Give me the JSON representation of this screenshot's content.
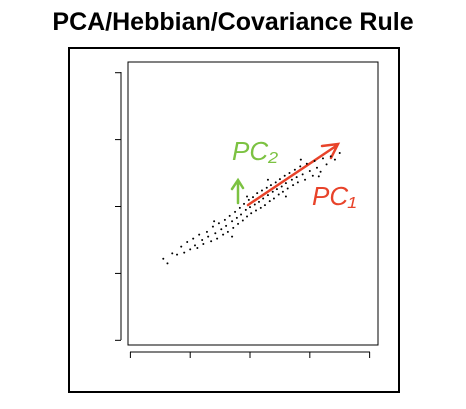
{
  "chart_data": {
    "type": "scatter",
    "title": "PCA/Hebbian/Covariance Rule",
    "annotations": [
      "PC₂",
      "PC₁"
    ],
    "annotation_colors": [
      "#7cc242",
      "#e8432a"
    ],
    "color": "#000000",
    "xlim": [
      -0.04,
      4.14
    ],
    "ylim": [
      -0.07,
      4.16
    ],
    "xticks": [
      0,
      1,
      2,
      3,
      4
    ],
    "yticks": [
      0,
      1,
      2,
      3,
      4
    ],
    "x": [
      0.55,
      0.62,
      0.7,
      0.78,
      0.85,
      0.9,
      0.95,
      1.0,
      1.05,
      1.08,
      1.12,
      1.15,
      1.2,
      1.22,
      1.28,
      1.3,
      1.35,
      1.38,
      1.42,
      1.45,
      1.48,
      1.52,
      1.55,
      1.58,
      1.6,
      1.63,
      1.66,
      1.7,
      1.72,
      1.75,
      1.78,
      1.8,
      1.83,
      1.85,
      1.88,
      1.9,
      1.93,
      1.95,
      1.98,
      2.0,
      2.02,
      2.05,
      2.08,
      2.1,
      2.12,
      2.15,
      2.18,
      2.2,
      2.22,
      2.25,
      2.28,
      2.3,
      2.33,
      2.35,
      2.38,
      2.4,
      2.43,
      2.45,
      2.48,
      2.5,
      2.53,
      2.55,
      2.58,
      2.6,
      2.63,
      2.66,
      2.7,
      2.72,
      2.75,
      2.78,
      2.8,
      2.84,
      2.88,
      2.92,
      2.95,
      3.0,
      3.05,
      3.08,
      3.12,
      3.18,
      3.22,
      3.28,
      3.35,
      3.42,
      3.5,
      2.3,
      1.7,
      2.6,
      1.95,
      2.85,
      1.4,
      3.15
    ],
    "values": [
      1.22,
      1.15,
      1.3,
      1.28,
      1.4,
      1.31,
      1.47,
      1.36,
      1.52,
      1.42,
      1.38,
      1.58,
      1.5,
      1.44,
      1.62,
      1.55,
      1.48,
      1.7,
      1.6,
      1.52,
      1.75,
      1.66,
      1.58,
      1.8,
      1.71,
      1.62,
      1.86,
      1.78,
      1.68,
      1.92,
      1.83,
      1.74,
      1.98,
      1.88,
      1.79,
      2.04,
      1.95,
      1.85,
      2.1,
      1.99,
      1.9,
      2.14,
      2.03,
      1.94,
      2.2,
      2.07,
      1.98,
      2.24,
      2.12,
      2.02,
      2.28,
      2.17,
      2.08,
      2.32,
      2.22,
      2.12,
      2.36,
      2.26,
      2.18,
      2.41,
      2.3,
      2.22,
      2.46,
      2.35,
      2.27,
      2.5,
      2.4,
      2.32,
      2.55,
      2.44,
      2.36,
      2.6,
      2.48,
      2.4,
      2.64,
      2.53,
      2.46,
      2.68,
      2.58,
      2.52,
      2.72,
      2.63,
      2.75,
      2.7,
      2.8,
      2.4,
      1.55,
      2.15,
      2.15,
      2.7,
      1.78,
      2.45
    ]
  }
}
